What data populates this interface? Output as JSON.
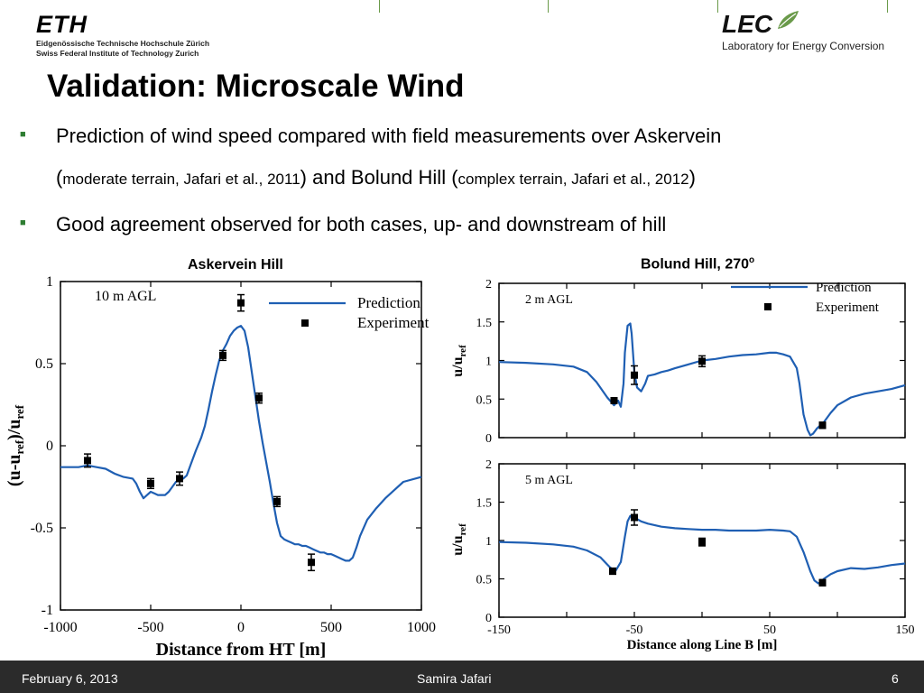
{
  "header": {
    "eth_logo": "ETH",
    "eth_line1": "Eidgenössische Technische Hochschule Zürich",
    "eth_line2": "Swiss Federal Institute of Technology Zurich",
    "lec_logo": "LEC",
    "lec_line": "Laboratory for Energy Conversion"
  },
  "slide": {
    "title": "Validation: Microscale Wind",
    "bullet1_a": "Prediction of wind speed compared with field measurements over Askervein",
    "bullet1_b_open": "(",
    "bullet1_b_small1": "moderate terrain, Jafari et al., 2011",
    "bullet1_b_mid": ") and Bolund Hill (",
    "bullet1_b_small2": "complex terrain, Jafari et al., 2012",
    "bullet1_b_close": ")",
    "bullet2": "Good agreement observed for both cases, up- and downstream of hill",
    "left_subtitle": "Askervein Hill",
    "right_subtitle": "Bolund Hill, 270",
    "right_subtitle_sup": "o"
  },
  "footer": {
    "date": "February 6, 2013",
    "author": "Samira Jafari",
    "page": "6"
  },
  "chart_data": [
    {
      "type": "line",
      "title": "Askervein Hill",
      "annotation": "10 m AGL",
      "xlabel": "Distance from HT [m]",
      "ylabel": "(u-u_ref)/u_ref",
      "xlim": [
        -1000,
        1000
      ],
      "ylim": [
        -1,
        1
      ],
      "xticks": [
        -1000,
        -500,
        0,
        500,
        1000
      ],
      "xtick_labels": [
        "-1000",
        "-500",
        "0",
        "500",
        "1000"
      ],
      "yticks": [
        -1,
        -0.5,
        0,
        0.5,
        1
      ],
      "ytick_labels": [
        "-1",
        "-0.5",
        "0",
        "0.5",
        "1"
      ],
      "legend_position": "top-right",
      "series": [
        {
          "name": "Prediction",
          "kind": "line",
          "x": [
            -1000,
            -900,
            -850,
            -800,
            -750,
            -700,
            -650,
            -600,
            -580,
            -560,
            -540,
            -520,
            -500,
            -480,
            -460,
            -440,
            -420,
            -400,
            -380,
            -360,
            -340,
            -320,
            -300,
            -280,
            -250,
            -220,
            -200,
            -180,
            -160,
            -140,
            -120,
            -100,
            -80,
            -60,
            -40,
            -20,
            0,
            20,
            40,
            60,
            80,
            100,
            120,
            140,
            160,
            180,
            200,
            220,
            240,
            260,
            280,
            300,
            320,
            340,
            360,
            380,
            400,
            420,
            440,
            460,
            480,
            500,
            520,
            540,
            560,
            580,
            600,
            620,
            640,
            660,
            700,
            750,
            800,
            850,
            900,
            1000
          ],
          "y": [
            -0.13,
            -0.13,
            -0.12,
            -0.13,
            -0.14,
            -0.17,
            -0.19,
            -0.2,
            -0.23,
            -0.28,
            -0.32,
            -0.3,
            -0.28,
            -0.29,
            -0.3,
            -0.3,
            -0.3,
            -0.28,
            -0.25,
            -0.22,
            -0.21,
            -0.2,
            -0.18,
            -0.12,
            -0.03,
            0.05,
            0.12,
            0.22,
            0.33,
            0.43,
            0.52,
            0.58,
            0.62,
            0.67,
            0.7,
            0.72,
            0.73,
            0.7,
            0.6,
            0.45,
            0.3,
            0.15,
            0.02,
            -0.1,
            -0.22,
            -0.35,
            -0.47,
            -0.55,
            -0.57,
            -0.58,
            -0.59,
            -0.6,
            -0.6,
            -0.61,
            -0.61,
            -0.62,
            -0.63,
            -0.64,
            -0.65,
            -0.65,
            -0.66,
            -0.66,
            -0.67,
            -0.68,
            -0.69,
            -0.7,
            -0.7,
            -0.68,
            -0.62,
            -0.55,
            -0.45,
            -0.38,
            -0.32,
            -0.27,
            -0.22,
            -0.19
          ]
        },
        {
          "name": "Experiment",
          "kind": "scatter",
          "x": [
            -850,
            -500,
            -340,
            -100,
            0,
            100,
            200,
            390
          ],
          "y": [
            -0.09,
            -0.23,
            -0.2,
            0.55,
            0.87,
            0.29,
            -0.34,
            -0.71
          ],
          "err": [
            0.04,
            0.03,
            0.04,
            0.03,
            0.05,
            0.03,
            0.03,
            0.05
          ]
        }
      ]
    },
    {
      "type": "line",
      "title": "Bolund Hill, 270o",
      "annotation": "2 m AGL",
      "xlabel": "",
      "ylabel": "u/u_ref",
      "xlim": [
        -150,
        150
      ],
      "ylim": [
        0,
        2
      ],
      "xticks": [
        -150,
        -100,
        -50,
        0,
        50,
        100,
        150
      ],
      "yticks": [
        0,
        0.5,
        1,
        1.5,
        2
      ],
      "ytick_labels": [
        "0",
        "0.5",
        "1",
        "1.5",
        "2"
      ],
      "legend_position": "top-right",
      "series": [
        {
          "name": "Prediction",
          "kind": "line",
          "x": [
            -150,
            -130,
            -110,
            -95,
            -85,
            -78,
            -70,
            -65,
            -62,
            -60,
            -58,
            -57,
            -55,
            -53,
            -52,
            -50,
            -48,
            -45,
            -42,
            -40,
            -35,
            -30,
            -25,
            -20,
            -10,
            0,
            10,
            20,
            30,
            40,
            50,
            55,
            60,
            65,
            70,
            72,
            75,
            78,
            80,
            82,
            85,
            90,
            95,
            100,
            110,
            120,
            130,
            140,
            150
          ],
          "y": [
            0.98,
            0.97,
            0.95,
            0.92,
            0.85,
            0.72,
            0.52,
            0.42,
            0.48,
            0.4,
            0.7,
            1.1,
            1.45,
            1.48,
            1.35,
            0.85,
            0.65,
            0.6,
            0.7,
            0.8,
            0.82,
            0.85,
            0.87,
            0.9,
            0.95,
            1.0,
            1.02,
            1.05,
            1.07,
            1.08,
            1.1,
            1.1,
            1.08,
            1.05,
            0.9,
            0.7,
            0.3,
            0.1,
            0.03,
            0.05,
            0.12,
            0.2,
            0.32,
            0.42,
            0.52,
            0.57,
            0.6,
            0.63,
            0.68
          ]
        },
        {
          "name": "Experiment",
          "kind": "scatter",
          "x": [
            -65,
            -50,
            0,
            89
          ],
          "y": [
            0.48,
            0.81,
            0.99,
            0.16
          ],
          "err": [
            0.03,
            0.12,
            0.07,
            0.04
          ]
        }
      ]
    },
    {
      "type": "line",
      "annotation": "5 m AGL",
      "xlabel": "Distance along Line B [m]",
      "ylabel": "u/u_ref",
      "xlim": [
        -150,
        150
      ],
      "ylim": [
        0,
        2
      ],
      "xticks": [
        -150,
        -100,
        -50,
        0,
        50,
        100,
        150
      ],
      "xtick_labels": [
        "-150",
        "",
        "-50",
        "",
        "50",
        "",
        "150"
      ],
      "yticks": [
        0,
        0.5,
        1,
        1.5,
        2
      ],
      "ytick_labels": [
        "0",
        "0.5",
        "1",
        "1.5",
        "2"
      ],
      "series": [
        {
          "kind": "line",
          "x": [
            -150,
            -130,
            -110,
            -95,
            -85,
            -75,
            -68,
            -64,
            -60,
            -57,
            -55,
            -53,
            -50,
            -45,
            -40,
            -30,
            -20,
            -10,
            0,
            10,
            20,
            30,
            40,
            50,
            60,
            65,
            70,
            75,
            80,
            83,
            86,
            88,
            90,
            95,
            100,
            110,
            120,
            130,
            140,
            150
          ],
          "y": [
            0.98,
            0.97,
            0.95,
            0.92,
            0.87,
            0.78,
            0.65,
            0.6,
            0.72,
            1.05,
            1.25,
            1.32,
            1.3,
            1.25,
            1.22,
            1.18,
            1.16,
            1.15,
            1.14,
            1.14,
            1.13,
            1.13,
            1.13,
            1.14,
            1.13,
            1.12,
            1.05,
            0.85,
            0.6,
            0.48,
            0.44,
            0.46,
            0.5,
            0.56,
            0.6,
            0.64,
            0.63,
            0.65,
            0.68,
            0.7
          ]
        },
        {
          "kind": "scatter",
          "x": [
            -66,
            -50,
            0,
            89
          ],
          "y": [
            0.6,
            1.3,
            0.98,
            0.45
          ],
          "err": [
            0.04,
            0.1,
            0.05,
            0.04
          ]
        }
      ]
    }
  ],
  "colors": {
    "prediction_line": "#1f5fb3",
    "marker": "#000000",
    "bullet": "#2e7d32",
    "footer_bg": "#2b2b2b",
    "accent_green": "#6a9a4a"
  },
  "icons": {
    "bullet": "square-bullet-icon",
    "lec_leaf": "leaf-icon"
  }
}
